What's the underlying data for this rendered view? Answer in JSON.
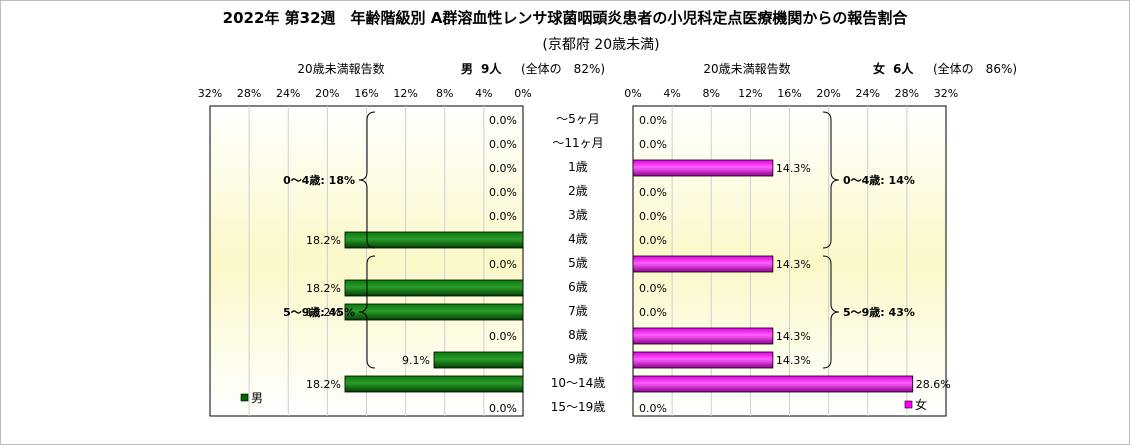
{
  "chart_data": {
    "type": "bar",
    "title": "2022年 第32週　年齢階級別 A群溶血性レンサ球菌咽頭炎患者の小児科定点医療機関からの報告割合",
    "subtitle": "(京都府 20歳未満)",
    "categories": [
      "～5ヶ月",
      "～11ヶ月",
      "1歳",
      "2歳",
      "3歳",
      "4歳",
      "5歳",
      "6歳",
      "7歳",
      "8歳",
      "9歳",
      "10～14歳",
      "15～19歳"
    ],
    "xlim": [
      0,
      32
    ],
    "ticks": [
      "0%",
      "4%",
      "8%",
      "12%",
      "16%",
      "20%",
      "24%",
      "28%",
      "32%"
    ],
    "axis_caption": "20歳未満報告数",
    "series": [
      {
        "name": "男",
        "header_sex": "男",
        "header_count": "9人",
        "header_total": "(全体の　82%)",
        "color": "#006400",
        "values": [
          0,
          0,
          0,
          0,
          0,
          18.2,
          0,
          18.2,
          18.2,
          0,
          9.1,
          18.2,
          0
        ],
        "labels": [
          "0.0%",
          "0.0%",
          "0.0%",
          "0.0%",
          "0.0%",
          "18.2%",
          "0.0%",
          "18.2%",
          "18.2%",
          "0.0%",
          "9.1%",
          "18.2%",
          "0.0%"
        ],
        "groups": [
          {
            "label": "0～4歳: 18%",
            "from": 0,
            "to": 5
          },
          {
            "label": "5～9歳: 45%",
            "from": 6,
            "to": 10
          }
        ]
      },
      {
        "name": "女",
        "header_sex": "女",
        "header_count": "6人",
        "header_total": "(全体の　86%)",
        "color": "#ff00ff",
        "values": [
          0,
          0,
          14.3,
          0,
          0,
          0,
          14.3,
          0,
          0,
          14.3,
          14.3,
          28.6,
          0
        ],
        "labels": [
          "0.0%",
          "0.0%",
          "14.3%",
          "0.0%",
          "0.0%",
          "0.0%",
          "14.3%",
          "0.0%",
          "0.0%",
          "14.3%",
          "14.3%",
          "28.6%",
          "0.0%"
        ],
        "groups": [
          {
            "label": "0～4歳: 14%",
            "from": 0,
            "to": 5
          },
          {
            "label": "5～9歳: 43%",
            "from": 6,
            "to": 10
          }
        ]
      }
    ]
  }
}
